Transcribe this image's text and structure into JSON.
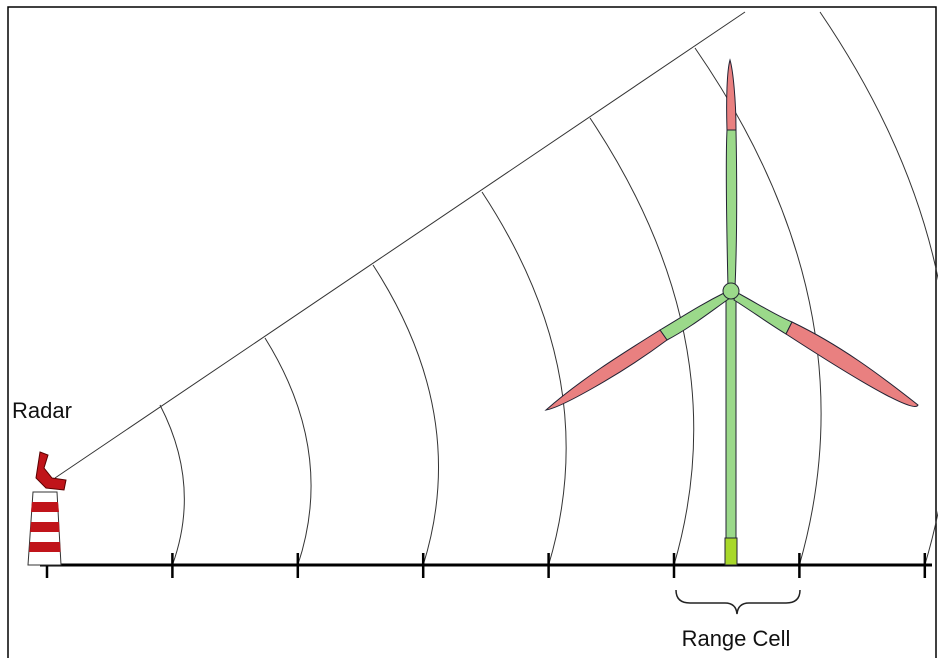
{
  "labels": {
    "radar": "Radar",
    "range_cell": "Range Cell"
  }
}
